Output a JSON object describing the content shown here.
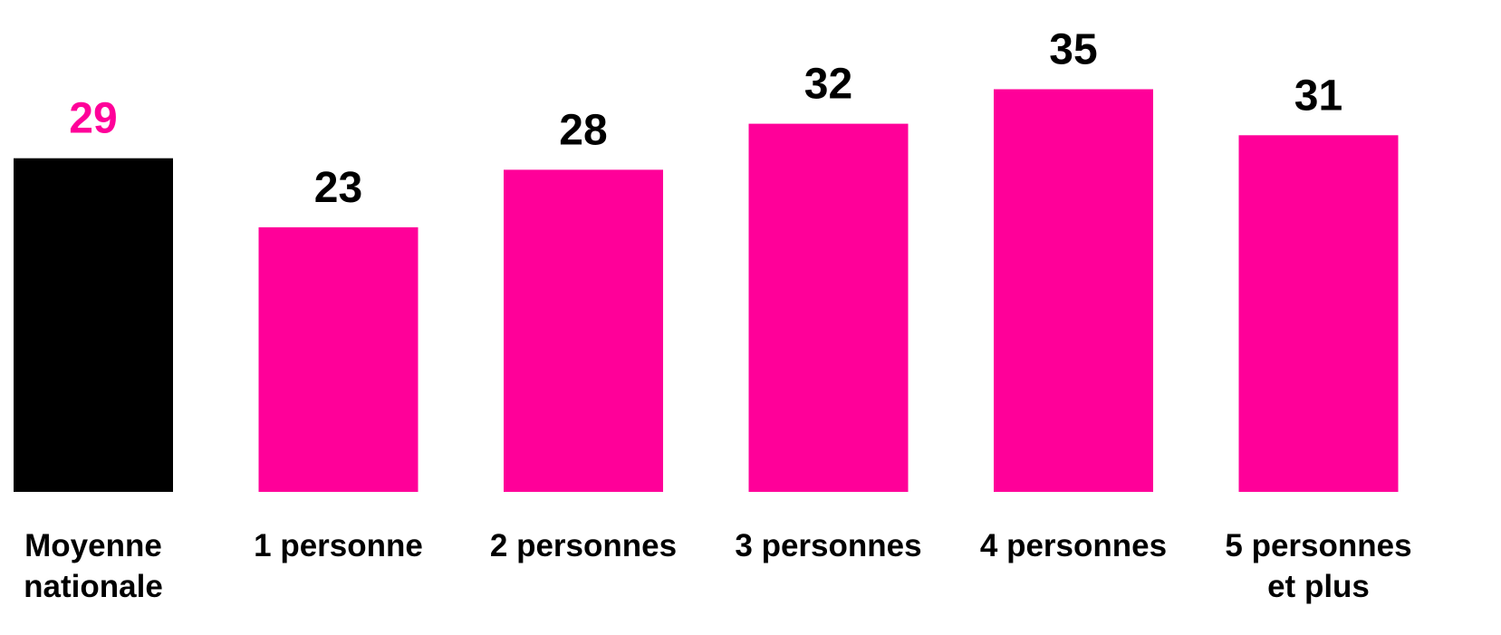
{
  "chart_data": {
    "type": "bar",
    "categories": [
      [
        "Moyenne",
        "nationale"
      ],
      [
        "1 personne"
      ],
      [
        "2 personnes"
      ],
      [
        "3 personnes"
      ],
      [
        "4 personnes"
      ],
      [
        "5 personnes",
        "et plus"
      ]
    ],
    "values": [
      29,
      23,
      28,
      32,
      35,
      31
    ],
    "bar_colors": [
      "#000000",
      "#ff0099",
      "#ff0099",
      "#ff0099",
      "#ff0099",
      "#ff0099"
    ],
    "label_colors": [
      "#ff0099",
      "#000000",
      "#000000",
      "#000000",
      "#000000",
      "#000000"
    ],
    "title": "",
    "xlabel": "",
    "ylabel": "",
    "ylim": [
      0,
      35
    ],
    "grid": false,
    "legend": "none"
  }
}
